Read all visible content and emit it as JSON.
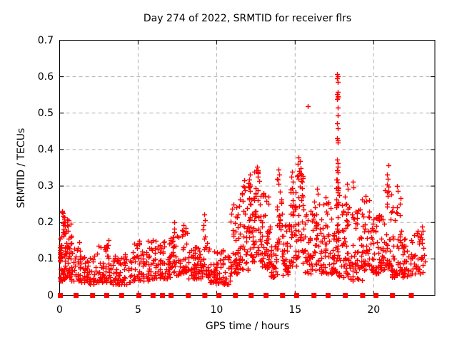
{
  "chart_data": {
    "type": "scatter",
    "title": "Day 274 of 2022, SRMTID for receiver flrs",
    "xlabel": "GPS time / hours",
    "ylabel": "SRMTID / TECUs",
    "xlim": [
      0,
      23.9
    ],
    "ylim": [
      0,
      0.7
    ],
    "xticks": [
      0,
      5,
      10,
      15,
      20
    ],
    "yticks": [
      0,
      0.1,
      0.2,
      0.3,
      0.4,
      0.5,
      0.6,
      0.7
    ],
    "grid": true,
    "legend_position": "none",
    "marker_shape": "plus",
    "marker_color": "#ff0000",
    "baseline_marker_shape": "filled-square",
    "grid_color": "#b0b0b0",
    "axis_color": "#000000",
    "seed": 274,
    "peak_points": [
      [
        17.68,
        0.607
      ],
      [
        17.71,
        0.601
      ],
      [
        17.69,
        0.596
      ],
      [
        17.72,
        0.585
      ],
      [
        17.7,
        0.558
      ],
      [
        17.68,
        0.552
      ],
      [
        17.72,
        0.547
      ],
      [
        17.7,
        0.543
      ],
      [
        17.69,
        0.538
      ],
      [
        17.71,
        0.515
      ],
      [
        17.7,
        0.494
      ],
      [
        17.68,
        0.472
      ],
      [
        17.71,
        0.458
      ],
      [
        17.69,
        0.432
      ],
      [
        17.72,
        0.426
      ],
      [
        17.7,
        0.419
      ],
      [
        17.68,
        0.372
      ],
      [
        17.72,
        0.362
      ],
      [
        17.7,
        0.352
      ],
      [
        17.67,
        0.344
      ],
      [
        17.73,
        0.338
      ],
      [
        15.79,
        0.52
      ],
      [
        20.93,
        0.357
      ],
      [
        20.87,
        0.332
      ],
      [
        20.9,
        0.32
      ],
      [
        20.84,
        0.304
      ],
      [
        20.95,
        0.287
      ],
      [
        20.89,
        0.272
      ],
      [
        15.22,
        0.378
      ],
      [
        15.3,
        0.369
      ],
      [
        15.18,
        0.36
      ],
      [
        15.35,
        0.35
      ],
      [
        15.26,
        0.342
      ],
      [
        15.4,
        0.333
      ],
      [
        12.58,
        0.352
      ],
      [
        12.52,
        0.344
      ],
      [
        12.64,
        0.336
      ],
      [
        12.6,
        0.325
      ],
      [
        13.93,
        0.346
      ],
      [
        13.97,
        0.332
      ],
      [
        13.89,
        0.318
      ],
      [
        14.8,
        0.34
      ],
      [
        14.76,
        0.326
      ],
      [
        14.84,
        0.312
      ],
      [
        12.1,
        0.331
      ],
      [
        12.06,
        0.318
      ],
      [
        12.14,
        0.305
      ],
      [
        11.76,
        0.316
      ],
      [
        11.72,
        0.3
      ],
      [
        11.8,
        0.288
      ],
      [
        16.4,
        0.292
      ],
      [
        16.45,
        0.278
      ],
      [
        18.3,
        0.306
      ],
      [
        18.35,
        0.292
      ],
      [
        18.68,
        0.312
      ],
      [
        18.72,
        0.296
      ],
      [
        21.5,
        0.301
      ],
      [
        21.55,
        0.286
      ],
      [
        19.5,
        0.272
      ],
      [
        19.55,
        0.26
      ],
      [
        0.15,
        0.231
      ],
      [
        0.2,
        0.218
      ],
      [
        0.55,
        0.206
      ],
      [
        1.25,
        0.146
      ],
      [
        3.1,
        0.152
      ],
      [
        5.6,
        0.15
      ],
      [
        6.6,
        0.146
      ],
      [
        7.3,
        0.201
      ],
      [
        7.9,
        0.192
      ],
      [
        7.85,
        0.176
      ],
      [
        9.2,
        0.221
      ],
      [
        9.24,
        0.207
      ],
      [
        9.17,
        0.192
      ],
      [
        0.02,
        0.132
      ],
      [
        0.03,
        0.118
      ],
      [
        0.02,
        0.104
      ]
    ],
    "bands": [
      [
        0.0,
        0.1,
        14,
        0.09,
        0.14,
        1.0
      ],
      [
        0.05,
        0.35,
        48,
        0.04,
        0.23,
        1.6
      ],
      [
        0.35,
        0.75,
        42,
        0.05,
        0.21,
        1.8
      ],
      [
        0.75,
        1.3,
        36,
        0.04,
        0.14,
        1.8
      ],
      [
        1.3,
        2.2,
        50,
        0.03,
        0.11,
        1.6
      ],
      [
        2.2,
        3.4,
        66,
        0.035,
        0.15,
        1.9
      ],
      [
        3.4,
        4.6,
        60,
        0.03,
        0.115,
        1.6
      ],
      [
        4.6,
        5.8,
        60,
        0.04,
        0.15,
        1.9
      ],
      [
        5.8,
        7.0,
        66,
        0.045,
        0.155,
        1.8
      ],
      [
        7.0,
        7.7,
        42,
        0.055,
        0.185,
        1.7
      ],
      [
        7.7,
        8.2,
        36,
        0.06,
        0.19,
        1.5
      ],
      [
        8.2,
        9.0,
        48,
        0.045,
        0.135,
        1.6
      ],
      [
        9.0,
        9.5,
        30,
        0.05,
        0.185,
        1.5
      ],
      [
        9.5,
        10.4,
        54,
        0.035,
        0.125,
        1.7
      ],
      [
        10.4,
        10.9,
        24,
        0.03,
        0.11,
        1.5
      ],
      [
        10.9,
        11.35,
        34,
        0.06,
        0.27,
        1.6
      ],
      [
        11.35,
        12.0,
        48,
        0.07,
        0.3,
        1.7
      ],
      [
        12.0,
        12.35,
        34,
        0.09,
        0.31,
        1.3
      ],
      [
        12.35,
        12.8,
        42,
        0.09,
        0.345,
        1.4
      ],
      [
        12.8,
        13.45,
        54,
        0.07,
        0.29,
        1.7
      ],
      [
        13.45,
        13.85,
        30,
        0.05,
        0.19,
        1.5
      ],
      [
        13.85,
        14.15,
        26,
        0.1,
        0.32,
        1.3
      ],
      [
        14.15,
        14.65,
        36,
        0.055,
        0.21,
        1.5
      ],
      [
        14.65,
        15.05,
        34,
        0.08,
        0.31,
        1.4
      ],
      [
        15.05,
        15.5,
        36,
        0.1,
        0.36,
        1.4
      ],
      [
        15.5,
        16.05,
        38,
        0.06,
        0.24,
        1.6
      ],
      [
        16.05,
        16.65,
        38,
        0.07,
        0.28,
        1.6
      ],
      [
        16.65,
        17.35,
        48,
        0.06,
        0.27,
        1.8
      ],
      [
        17.35,
        17.62,
        24,
        0.05,
        0.19,
        1.5
      ],
      [
        17.62,
        17.78,
        31,
        0.1,
        0.34,
        1.0
      ],
      [
        17.78,
        18.5,
        54,
        0.05,
        0.28,
        1.8
      ],
      [
        18.5,
        19.25,
        48,
        0.04,
        0.24,
        1.8
      ],
      [
        19.25,
        19.85,
        42,
        0.07,
        0.27,
        1.7
      ],
      [
        19.85,
        20.45,
        46,
        0.06,
        0.22,
        1.6
      ],
      [
        20.45,
        21.15,
        50,
        0.07,
        0.3,
        1.7
      ],
      [
        21.15,
        21.8,
        48,
        0.05,
        0.28,
        1.8
      ],
      [
        21.8,
        22.55,
        42,
        0.05,
        0.17,
        1.6
      ],
      [
        22.55,
        23.25,
        36,
        0.06,
        0.2,
        1.4
      ]
    ],
    "baseline_squares_hours": [
      0.05,
      1.05,
      2.1,
      3.0,
      3.95,
      5.05,
      5.95,
      6.55,
      7.1,
      8.2,
      9.25,
      10.15,
      11.2,
      12.2,
      13.15,
      14.2,
      15.1,
      16.2,
      17.1,
      18.2,
      19.3,
      20.15,
      21.2,
      22.4
    ]
  }
}
